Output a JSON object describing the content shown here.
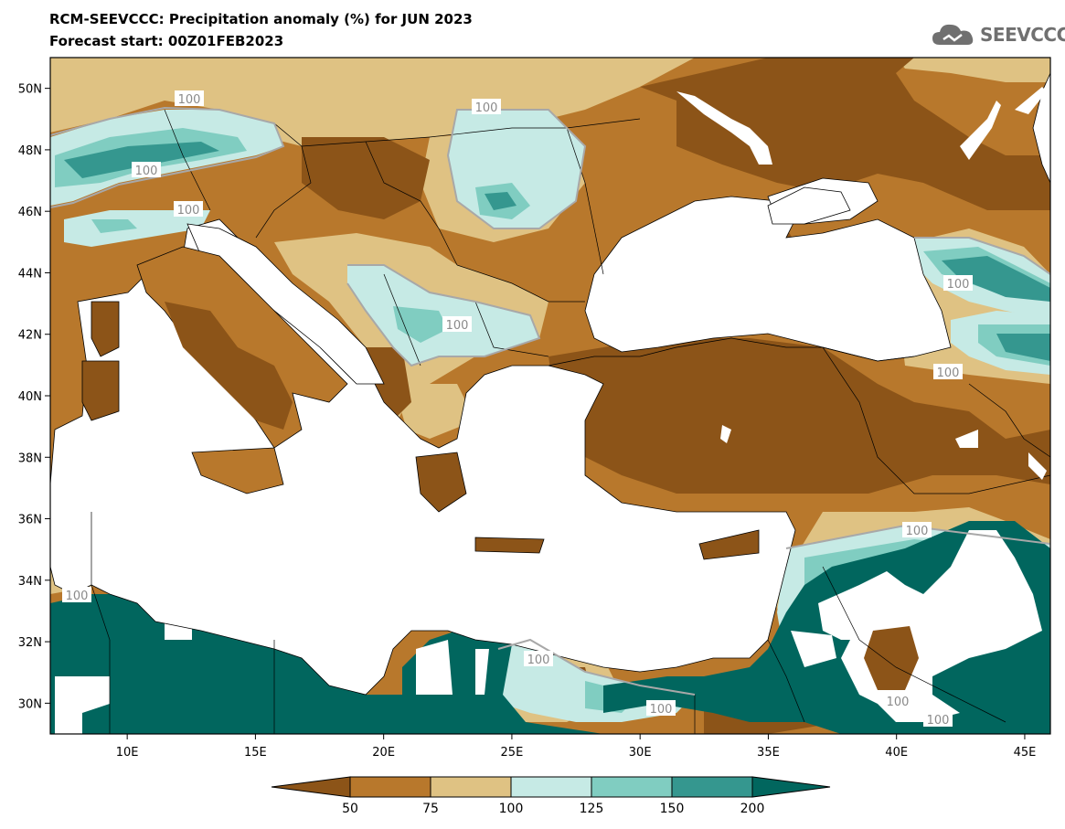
{
  "header": {
    "title": "RCM-SEEVCCC: Precipitation anomaly (%) for JUN 2023",
    "subtitle": "Forecast start: 00Z01FEB2023",
    "logo_text": "SEEVCCC"
  },
  "map": {
    "lon_range": [
      7,
      46
    ],
    "lat_range": [
      29,
      51
    ],
    "lon_ticks": [
      "10E",
      "15E",
      "20E",
      "25E",
      "30E",
      "35E",
      "40E",
      "45E"
    ],
    "lat_ticks": [
      "30N",
      "32N",
      "34N",
      "36N",
      "38N",
      "40N",
      "42N",
      "44N",
      "46N",
      "48N",
      "50N"
    ],
    "contour_labels": [
      "100",
      "100",
      "100",
      "100",
      "100",
      "100",
      "100",
      "100",
      "100",
      "100",
      "100",
      "100",
      "100"
    ],
    "colors": {
      "lt50": "#8c5418",
      "50_75": "#b8782c",
      "75_100": "#dfc283",
      "100_125": "#c6eae5",
      "125_150": "#80cdc1",
      "150_200": "#35978f",
      "gt200": "#01665e",
      "sea": "#ffffff"
    }
  },
  "colorbar": {
    "boundaries": [
      "50",
      "75",
      "100",
      "125",
      "150",
      "200"
    ],
    "colors": [
      "#8c5418",
      "#b8782c",
      "#dfc283",
      "#c6eae5",
      "#80cdc1",
      "#35978f",
      "#01665e"
    ]
  }
}
